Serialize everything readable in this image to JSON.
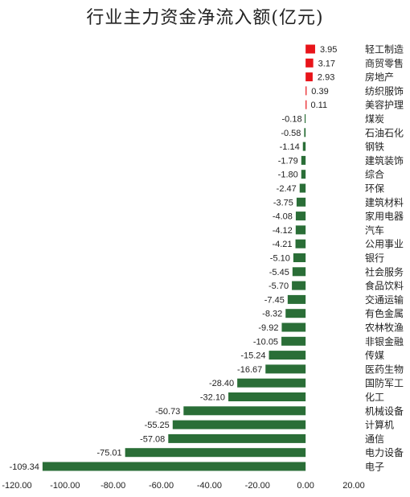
{
  "chart_data": {
    "type": "bar",
    "orientation": "horizontal",
    "title": "行业主力资金净流入额(亿元)",
    "categories": [
      "轻工制造",
      "商贸零售",
      "房地产",
      "纺织服饰",
      "美容护理",
      "煤炭",
      "石油石化",
      "钢铁",
      "建筑装饰",
      "综合",
      "环保",
      "建筑材料",
      "家用电器",
      "汽车",
      "公用事业",
      "银行",
      "社会服务",
      "食品饮料",
      "交通运输",
      "有色金属",
      "农林牧渔",
      "非银金融",
      "传媒",
      "医药生物",
      "国防军工",
      "化工",
      "机械设备",
      "计算机",
      "通信",
      "电力设备",
      "电子"
    ],
    "values": [
      3.95,
      3.17,
      2.93,
      0.39,
      0.11,
      -0.18,
      -0.58,
      -1.14,
      -1.79,
      -1.8,
      -2.47,
      -3.75,
      -4.08,
      -4.12,
      -4.21,
      -5.1,
      -5.45,
      -5.7,
      -7.45,
      -8.32,
      -9.92,
      -10.05,
      -15.24,
      -16.67,
      -28.4,
      -32.1,
      -50.73,
      -55.25,
      -57.08,
      -75.01,
      -109.34
    ],
    "value_labels": [
      "3.95",
      "3.17",
      "2.93",
      "0.39",
      "0.11",
      "-0.18",
      "-0.58",
      "-1.14",
      "-1.79",
      "-1.80",
      "-2.47",
      "-3.75",
      "-4.08",
      "-4.12",
      "-4.21",
      "-5.10",
      "-5.45",
      "-5.70",
      "-7.45",
      "-8.32",
      "-9.92",
      "-10.05",
      "-15.24",
      "-16.67",
      "-28.40",
      "-32.10",
      "-50.73",
      "-55.25",
      "-57.08",
      "-75.01",
      "-109.34"
    ],
    "xlim": [
      -120,
      20
    ],
    "xticks": [
      -120,
      -100,
      -80,
      -60,
      -40,
      -20,
      0,
      20
    ],
    "xtick_labels": [
      "-120.00",
      "-100.00",
      "-80.00",
      "-60.00",
      "-40.00",
      "-20.00",
      "0.00",
      "20.00"
    ],
    "grid": false,
    "legend": "none",
    "colors": {
      "positive": "#e8141a",
      "negative": "#2a6e37",
      "text": "#222222"
    }
  }
}
